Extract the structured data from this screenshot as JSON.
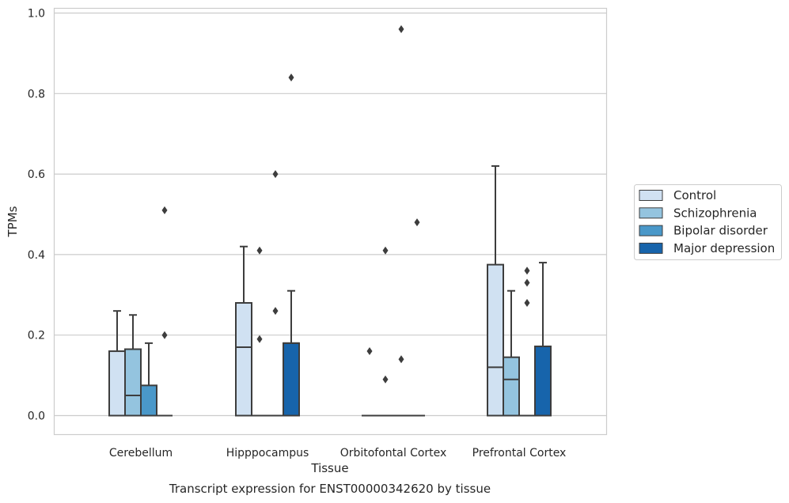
{
  "chart_data": {
    "type": "box",
    "xlabel": "Tissue",
    "ylabel": "TPMs",
    "caption": "Transcript expression for ENST00000342620 by tissue",
    "ylim": [
      -0.045,
      1.01
    ],
    "yticks": [
      "0.0",
      "0.2",
      "0.4",
      "0.6",
      "0.8",
      "1.0"
    ],
    "grid": "horizontal",
    "legend_position": "right",
    "categories": [
      "Cerebellum",
      "Hipppocampus",
      "Orbitofontal Cortex",
      "Prefrontal Cortex"
    ],
    "series": [
      {
        "name": "Control",
        "color": "#d0e1f2",
        "boxes": [
          {
            "category": "Cerebellum",
            "min": 0,
            "q1": 0,
            "median": 0,
            "q3": 0.16,
            "max": 0.26,
            "outliers": []
          },
          {
            "category": "Hipppocampus",
            "min": 0,
            "q1": 0,
            "median": 0.17,
            "q3": 0.28,
            "max": 0.42,
            "outliers": []
          },
          {
            "category": "Orbitofontal Cortex",
            "min": 0,
            "q1": 0,
            "median": 0,
            "q3": 0,
            "max": 0,
            "outliers": [
              0.16
            ]
          },
          {
            "category": "Prefrontal Cortex",
            "min": 0,
            "q1": 0,
            "median": 0.12,
            "q3": 0.375,
            "max": 0.62,
            "outliers": []
          }
        ]
      },
      {
        "name": "Schizophrenia",
        "color": "#94c4df",
        "boxes": [
          {
            "category": "Cerebellum",
            "min": 0,
            "q1": 0,
            "median": 0.05,
            "q3": 0.165,
            "max": 0.25,
            "outliers": []
          },
          {
            "category": "Hipppocampus",
            "min": 0,
            "q1": 0,
            "median": 0,
            "q3": 0,
            "max": 0,
            "outliers": [
              0.19,
              0.41
            ]
          },
          {
            "category": "Orbitofontal Cortex",
            "min": 0,
            "q1": 0,
            "median": 0,
            "q3": 0,
            "max": 0,
            "outliers": [
              0.09,
              0.41
            ]
          },
          {
            "category": "Prefrontal Cortex",
            "min": 0,
            "q1": 0,
            "median": 0.09,
            "q3": 0.145,
            "max": 0.31,
            "outliers": []
          }
        ]
      },
      {
        "name": "Bipolar disorder",
        "color": "#4a98c9",
        "boxes": [
          {
            "category": "Cerebellum",
            "min": 0,
            "q1": 0,
            "median": 0,
            "q3": 0.075,
            "max": 0.18,
            "outliers": []
          },
          {
            "category": "Hipppocampus",
            "min": 0,
            "q1": 0,
            "median": 0,
            "q3": 0,
            "max": 0,
            "outliers": [
              0.26,
              0.6
            ]
          },
          {
            "category": "Orbitofontal Cortex",
            "min": 0,
            "q1": 0,
            "median": 0,
            "q3": 0,
            "max": 0,
            "outliers": [
              0.14,
              0.96
            ]
          },
          {
            "category": "Prefrontal Cortex",
            "min": 0,
            "q1": 0,
            "median": 0,
            "q3": 0,
            "max": 0,
            "outliers": [
              0.28,
              0.33,
              0.36
            ]
          }
        ]
      },
      {
        "name": "Major depression",
        "color": "#1764ab",
        "boxes": [
          {
            "category": "Cerebellum",
            "min": 0,
            "q1": 0,
            "median": 0,
            "q3": 0,
            "max": 0,
            "outliers": [
              0.2,
              0.51
            ]
          },
          {
            "category": "Hipppocampus",
            "min": 0,
            "q1": 0,
            "median": 0.18,
            "q3": 0.18,
            "max": 0.31,
            "outliers": [
              0.84
            ]
          },
          {
            "category": "Orbitofontal Cortex",
            "min": 0,
            "q1": 0,
            "median": 0,
            "q3": 0,
            "max": 0,
            "outliers": [
              0.48
            ]
          },
          {
            "category": "Prefrontal Cortex",
            "min": 0,
            "q1": 0,
            "median": 0,
            "q3": 0.172,
            "max": 0.38,
            "outliers": []
          }
        ]
      }
    ],
    "colors": {
      "grid": "#cccccc",
      "frame": "#cccccc",
      "box_edge": "#3d3d3d",
      "legend_edge": "#cccccc"
    }
  }
}
